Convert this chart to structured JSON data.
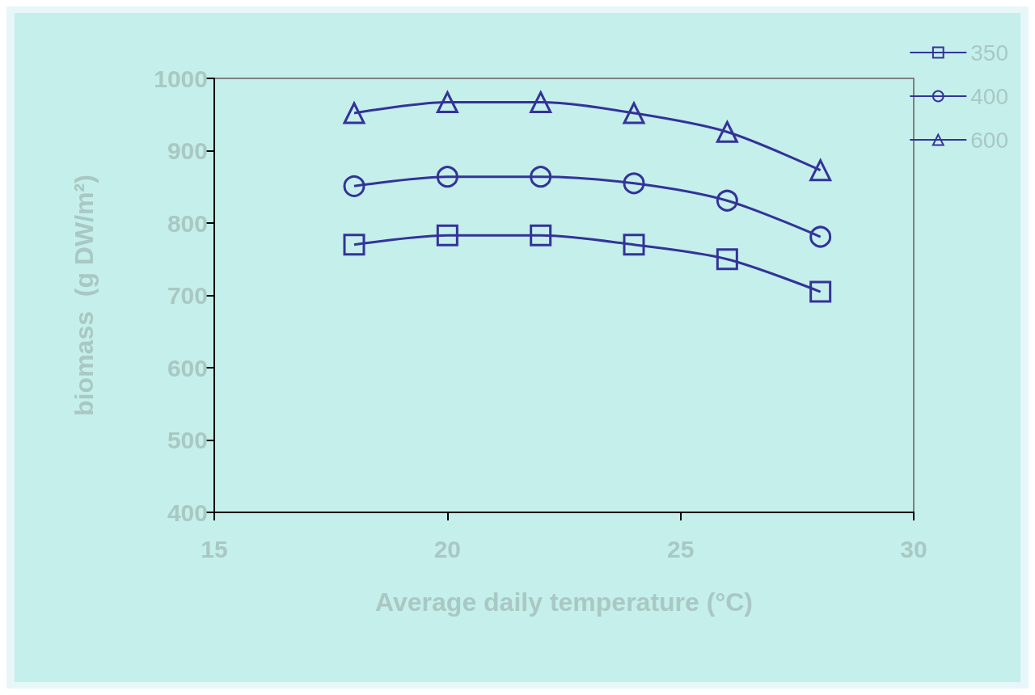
{
  "chart_data": {
    "type": "line",
    "xlabel": "Average daily temperature (°C)",
    "ylabel": "biomass  (g DW/m²)",
    "x": [
      18,
      20,
      22,
      24,
      26,
      28
    ],
    "series": [
      {
        "name": "350",
        "color": "#333399",
        "marker": "square",
        "values": [
          770,
          783,
          783,
          770,
          750,
          705
        ]
      },
      {
        "name": "400",
        "color": "#333399",
        "marker": "circle",
        "values": [
          851,
          864,
          864,
          855,
          831,
          781
        ]
      },
      {
        "name": "600",
        "color": "#333399",
        "marker": "triangle",
        "values": [
          952,
          967,
          967,
          952,
          926,
          873
        ]
      }
    ],
    "xlim": [
      15,
      30
    ],
    "xticks": [
      15,
      20,
      25,
      30
    ],
    "ylim": [
      400,
      1000
    ],
    "yticks": [
      400,
      500,
      600,
      700,
      800,
      900,
      1000
    ],
    "grid": false,
    "legend": "top right",
    "line_style": "solid"
  }
}
